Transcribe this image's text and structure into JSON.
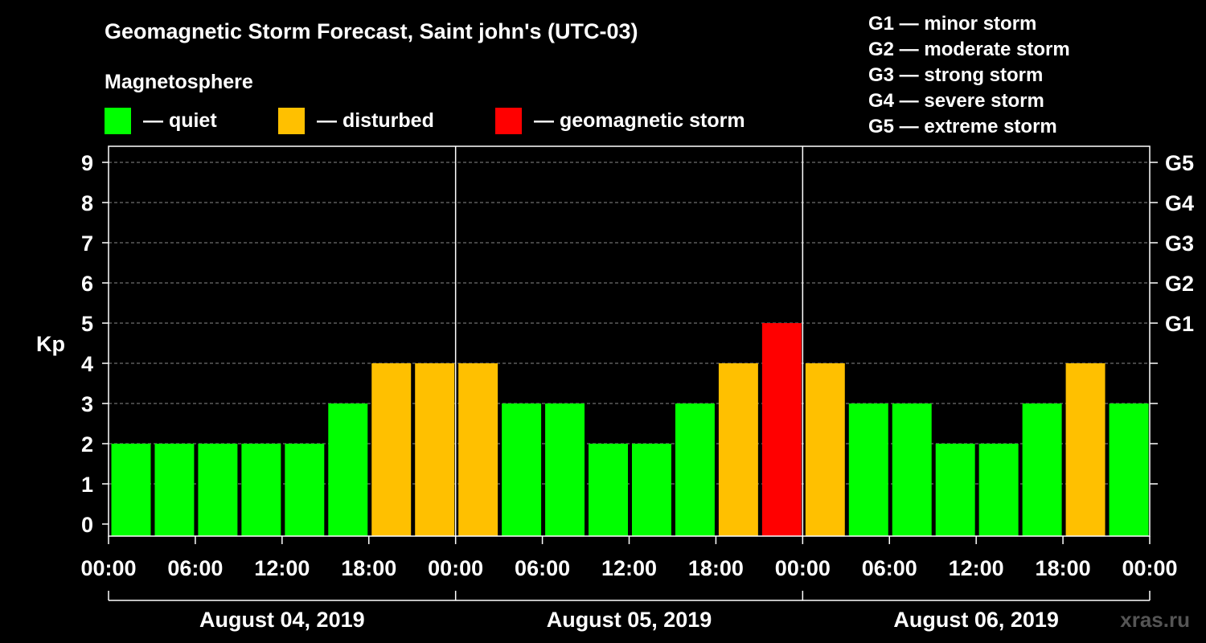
{
  "chart_data": {
    "type": "bar",
    "title": "Geomagnetic Storm Forecast, Saint john's (UTC-03)",
    "subtitle": "Magnetosphere",
    "ylabel": "Kp",
    "ylim": [
      0,
      9
    ],
    "y_ticks": [
      0,
      1,
      2,
      3,
      4,
      5,
      6,
      7,
      8,
      9
    ],
    "right_ticks": [
      {
        "kp": 5,
        "label": "G1"
      },
      {
        "kp": 6,
        "label": "G2"
      },
      {
        "kp": 7,
        "label": "G3"
      },
      {
        "kp": 8,
        "label": "G4"
      },
      {
        "kp": 9,
        "label": "G5"
      }
    ],
    "grid": true,
    "x_tick_labels": [
      "00:00",
      "06:00",
      "12:00",
      "18:00",
      "00:00",
      "06:00",
      "12:00",
      "18:00",
      "00:00",
      "06:00",
      "12:00",
      "18:00",
      "00:00"
    ],
    "days": [
      "August 04, 2019",
      "August 05, 2019",
      "August 06, 2019"
    ],
    "legend": [
      {
        "label": "— quiet",
        "color": "#00FF00"
      },
      {
        "label": "— disturbed",
        "color": "#FFC000"
      },
      {
        "label": "— geomagnetic storm",
        "color": "#FF0000"
      }
    ],
    "scale_legend": [
      "G1 — minor storm",
      "G2 — moderate storm",
      "G3 — strong storm",
      "G4 — severe storm",
      "G5 — extreme storm"
    ],
    "colors": {
      "quiet": "#00FF00",
      "disturbed": "#FFC000",
      "storm": "#FF0000"
    },
    "hours_per_bar": 3,
    "values": [
      2,
      2,
      2,
      2,
      2,
      3,
      4,
      4,
      4,
      3,
      3,
      2,
      2,
      3,
      4,
      5,
      4,
      3,
      3,
      2,
      2,
      3,
      4,
      3
    ],
    "watermark": "xras.ru"
  }
}
